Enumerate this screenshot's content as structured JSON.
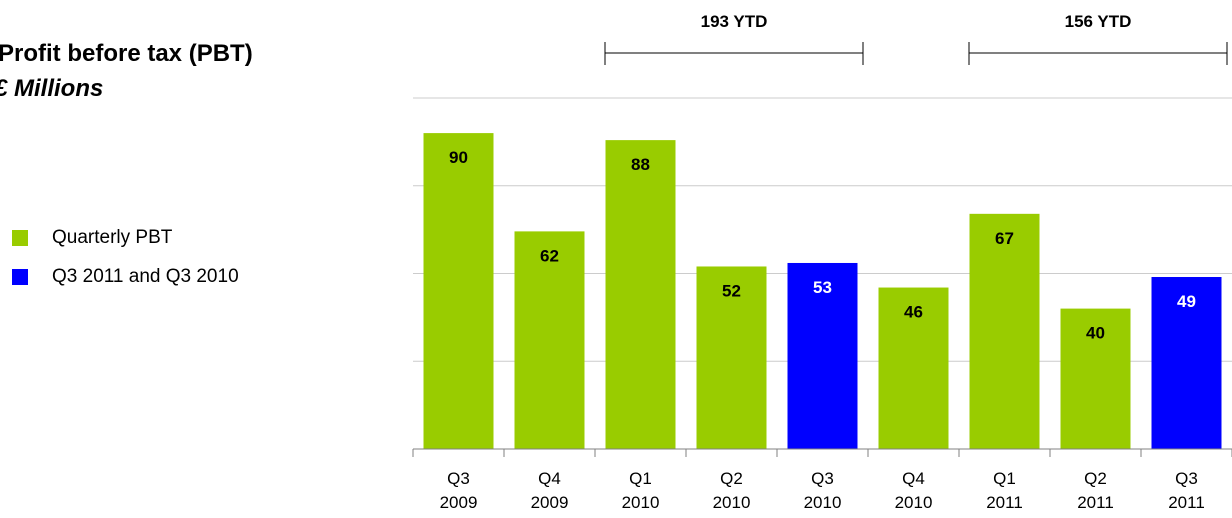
{
  "chart_data": {
    "type": "bar",
    "title": "Profit before tax (PBT)",
    "subtitle": "£ Millions",
    "categories": [
      "Q3\n2009",
      "Q4\n2009",
      "Q1\n2010",
      "Q2\n2010",
      "Q3\n2010",
      "Q4\n2010",
      "Q1\n2011",
      "Q2\n2011",
      "Q3\n2011"
    ],
    "values": [
      90,
      62,
      88,
      52,
      53,
      46,
      67,
      40,
      49
    ],
    "highlighted": [
      false,
      false,
      false,
      false,
      true,
      false,
      false,
      false,
      true
    ],
    "colors": {
      "quarterly": "#99cc00",
      "highlight": "#0000ff",
      "gridline": "#cccccc",
      "axis": "#808080"
    },
    "legend": [
      {
        "label": "Quarterly PBT",
        "color": "#99cc00"
      },
      {
        "label": "Q3 2011 and Q3 2010",
        "color": "#0000ff"
      }
    ],
    "legend_position": "left",
    "ylim": [
      0,
      100
    ],
    "grid": true,
    "annotations": [
      {
        "text": "193 YTD",
        "from_category": 2,
        "to_category": 4
      },
      {
        "text": "156 YTD",
        "from_category": 6,
        "to_category": 8
      }
    ]
  }
}
